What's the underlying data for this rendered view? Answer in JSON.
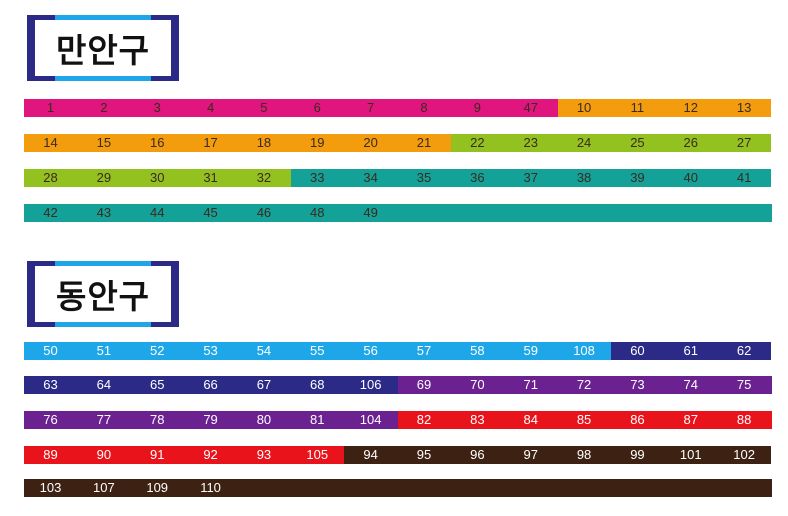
{
  "colors": {
    "magenta": "#e0167e",
    "orange": "#f29c0e",
    "green": "#93c11f",
    "teal": "#13a198",
    "sky": "#1ea7e8",
    "navy": "#2b2a86",
    "purple": "#6b2290",
    "red": "#e8131b",
    "brown": "#3d2214",
    "label_border": "#2b2a86",
    "label_accent": "#1ea7e8"
  },
  "districts": [
    {
      "label": "만안구",
      "rows": [
        [
          "1",
          "2",
          "3",
          "4",
          "5",
          "6",
          "7",
          "8",
          "9",
          "47",
          "10",
          "11",
          "12",
          "13"
        ],
        [
          "14",
          "15",
          "16",
          "17",
          "18",
          "19",
          "20",
          "21",
          "22",
          "23",
          "24",
          "25",
          "26",
          "27"
        ],
        [
          "28",
          "29",
          "30",
          "31",
          "32",
          "33",
          "34",
          "35",
          "36",
          "37",
          "38",
          "39",
          "40",
          "41"
        ],
        [
          "42",
          "43",
          "44",
          "45",
          "46",
          "48",
          "49"
        ]
      ]
    },
    {
      "label": "동안구",
      "rows": [
        [
          "50",
          "51",
          "52",
          "53",
          "54",
          "55",
          "56",
          "57",
          "58",
          "59",
          "108",
          "60",
          "61",
          "62"
        ],
        [
          "63",
          "64",
          "65",
          "66",
          "67",
          "68",
          "106",
          "69",
          "70",
          "71",
          "72",
          "73",
          "74",
          "75"
        ],
        [
          "76",
          "77",
          "78",
          "79",
          "80",
          "81",
          "104",
          "82",
          "83",
          "84",
          "85",
          "86",
          "87",
          "88"
        ],
        [
          "89",
          "90",
          "91",
          "92",
          "93",
          "105",
          "94",
          "95",
          "96",
          "97",
          "98",
          "99",
          "101",
          "102"
        ],
        [
          "103",
          "107",
          "109",
          "110"
        ]
      ]
    }
  ]
}
